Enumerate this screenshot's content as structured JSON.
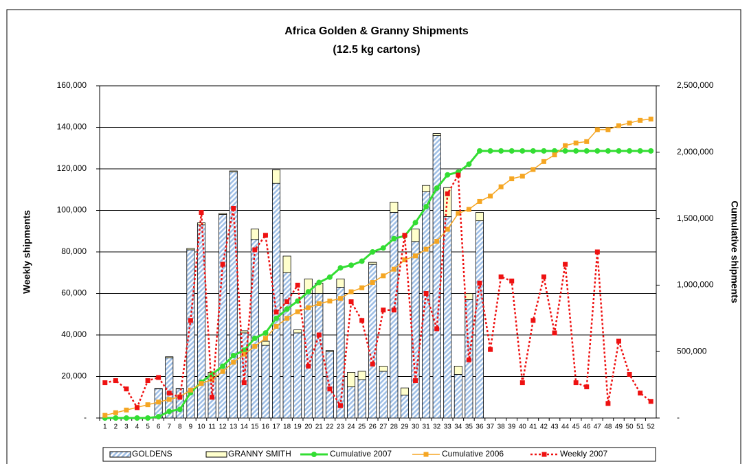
{
  "chart_data": {
    "type": "combo",
    "title": "Africa Golden & Granny Shipments",
    "subtitle": "(12.5 kg cartons)",
    "ylabel": "Weekly shipments",
    "y2label": "Cumulative shipments",
    "categories": [
      "1",
      "2",
      "3",
      "4",
      "5",
      "6",
      "7",
      "8",
      "9",
      "10",
      "11",
      "12",
      "13",
      "14",
      "15",
      "16",
      "17",
      "18",
      "19",
      "20",
      "21",
      "22",
      "23",
      "24",
      "25",
      "26",
      "27",
      "28",
      "29",
      "30",
      "31",
      "32",
      "33",
      "34",
      "35",
      "36",
      "37",
      "38",
      "39",
      "40",
      "41",
      "42",
      "43",
      "44",
      "45",
      "46",
      "47",
      "48",
      "49",
      "50",
      "51",
      "52"
    ],
    "ylim": [
      0,
      160000
    ],
    "yticks": [
      {
        "value": 0,
        "label": "-"
      },
      {
        "value": 20000,
        "label": "20,000"
      },
      {
        "value": 40000,
        "label": "40,000"
      },
      {
        "value": 60000,
        "label": "60,000"
      },
      {
        "value": 80000,
        "label": "80,000"
      },
      {
        "value": 100000,
        "label": "100,000"
      },
      {
        "value": 120000,
        "label": "120,000"
      },
      {
        "value": 140000,
        "label": "140,000"
      },
      {
        "value": 160000,
        "label": "160,000"
      }
    ],
    "y2lim": [
      0,
      2500000
    ],
    "y2ticks": [
      {
        "value": 0,
        "label": "-"
      },
      {
        "value": 500000,
        "label": "500,000"
      },
      {
        "value": 1000000,
        "label": "1,000,000"
      },
      {
        "value": 1500000,
        "label": "1,500,000"
      },
      {
        "value": 2000000,
        "label": "2,000,000"
      },
      {
        "value": 2500000,
        "label": "2,500,000"
      }
    ],
    "grid": true,
    "legend": "bottom",
    "series": [
      {
        "name": "GOLDENS",
        "type": "bar",
        "stack": true,
        "color": "#b8d0ee",
        "hatch": true,
        "values": [
          0,
          0,
          0,
          0,
          0,
          14000,
          29000,
          14000,
          81000,
          93000,
          20000,
          98000,
          118500,
          41000,
          86000,
          35000,
          113000,
          70000,
          41000,
          60000,
          60000,
          32000,
          63000,
          15000,
          18500,
          74000,
          22500,
          99000,
          11000,
          85000,
          109000,
          136000,
          97000,
          21000,
          57000,
          95000,
          null,
          null,
          null,
          null,
          null,
          null,
          null,
          null,
          null,
          null,
          null,
          null,
          null,
          null,
          null,
          null
        ]
      },
      {
        "name": "GRANNY SMITH",
        "type": "bar",
        "stack": true,
        "color": "#ffffcc",
        "values": [
          0,
          0,
          0,
          0,
          0,
          200,
          500,
          200,
          700,
          1000,
          2000,
          500,
          500,
          1000,
          5000,
          2000,
          6500,
          8000,
          1500,
          7000,
          5000,
          500,
          4000,
          7000,
          4000,
          1000,
          2500,
          5000,
          3500,
          6000,
          3000,
          1000,
          14000,
          4000,
          3000,
          4000,
          null,
          null,
          null,
          null,
          null,
          null,
          null,
          null,
          null,
          null,
          null,
          null,
          null,
          null,
          null,
          null
        ]
      },
      {
        "name": "Cumulative 2007",
        "type": "line",
        "axis": "y2",
        "color": "#33dd33",
        "marker": "circle",
        "values": [
          0,
          0,
          0,
          0,
          0,
          10000,
          50000,
          65000,
          190000,
          270000,
          330000,
          390000,
          470000,
          510000,
          600000,
          640000,
          750000,
          820000,
          880000,
          950000,
          1020000,
          1060000,
          1130000,
          1150000,
          1180000,
          1250000,
          1280000,
          1350000,
          1370000,
          1470000,
          1590000,
          1730000,
          1830000,
          1850000,
          1910000,
          2010000,
          2010000,
          2010000,
          2010000,
          2010000,
          2010000,
          2010000,
          2010000,
          2010000,
          2010000,
          2010000,
          2010000,
          2010000,
          2010000,
          2010000,
          2010000,
          2010000
        ]
      },
      {
        "name": "Cumulative 2006",
        "type": "line",
        "axis": "y2",
        "color": "#f5a623",
        "marker": "square",
        "values": [
          20000,
          40000,
          60000,
          80000,
          100000,
          120000,
          140000,
          160000,
          210000,
          260000,
          290000,
          350000,
          420000,
          480000,
          540000,
          600000,
          690000,
          750000,
          800000,
          830000,
          860000,
          880000,
          900000,
          950000,
          980000,
          1020000,
          1070000,
          1120000,
          1190000,
          1220000,
          1270000,
          1330000,
          1420000,
          1540000,
          1570000,
          1630000,
          1670000,
          1740000,
          1800000,
          1820000,
          1870000,
          1930000,
          1980000,
          2050000,
          2070000,
          2080000,
          2170000,
          2170000,
          2200000,
          2220000,
          2240000,
          2250000
        ]
      },
      {
        "name": "Weekly 2007",
        "type": "line",
        "dashed": true,
        "color": "#ee1111",
        "marker": "square",
        "values": [
          17000,
          18000,
          14000,
          5000,
          18000,
          19500,
          12000,
          10000,
          47000,
          99000,
          10000,
          74000,
          101000,
          17000,
          81000,
          88000,
          51000,
          56000,
          64000,
          25000,
          40000,
          14000,
          6000,
          56000,
          47000,
          26000,
          52000,
          52000,
          88000,
          18000,
          60000,
          43000,
          108000,
          117000,
          28000,
          65000,
          33000,
          68000,
          66000,
          17000,
          47000,
          68000,
          41000,
          74000,
          17000,
          15000,
          80000,
          7000,
          37000,
          21000,
          12000,
          8000
        ]
      }
    ]
  }
}
